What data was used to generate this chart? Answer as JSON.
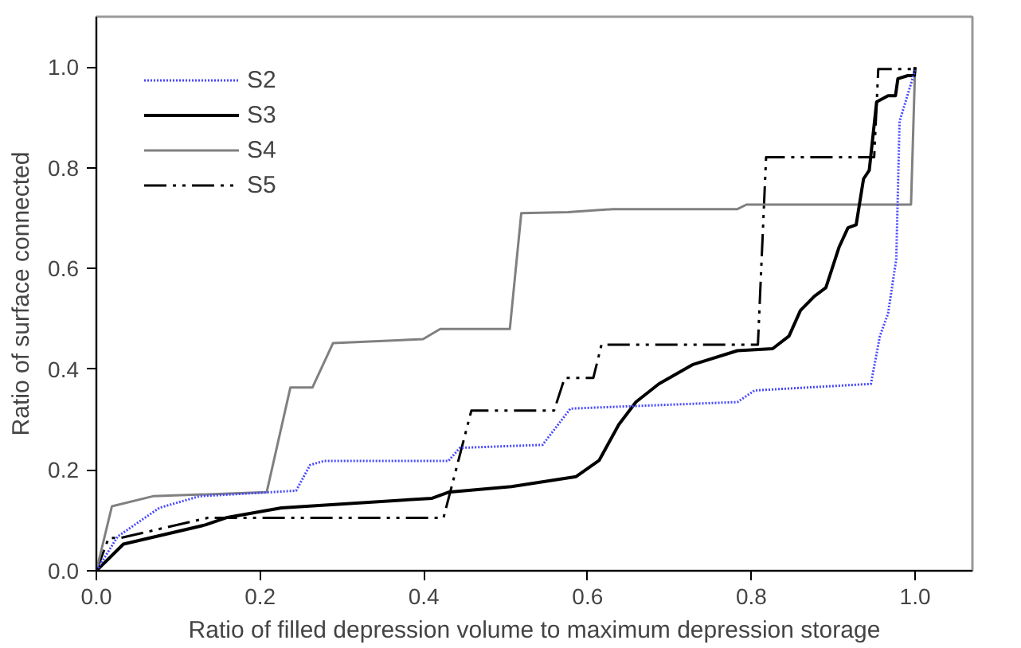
{
  "chart_data": {
    "type": "line",
    "xlabel": "Ratio of filled depression volume to maximum depression storage",
    "ylabel": "Ratio of surface connected",
    "xlim": [
      0,
      1.07
    ],
    "ylim": [
      0,
      1.1
    ],
    "xticks": [
      {
        "value": 0,
        "label": "0.0"
      },
      {
        "value": 0.2,
        "label": "0.2"
      },
      {
        "value": 0.4,
        "label": "0.4"
      },
      {
        "value": 0.6,
        "label": "0.6"
      },
      {
        "value": 0.8,
        "label": "0.8"
      },
      {
        "value": 1.0,
        "label": "1.0"
      }
    ],
    "yticks": [
      {
        "value": 0,
        "label": "0.0"
      },
      {
        "value": 0.2,
        "label": "0.2"
      },
      {
        "value": 0.4,
        "label": "0.4"
      },
      {
        "value": 0.6,
        "label": "0.6"
      },
      {
        "value": 0.8,
        "label": "0.8"
      },
      {
        "value": 1.0,
        "label": "1.0"
      }
    ],
    "grid": false,
    "legend": "top left",
    "marker": "none",
    "series": [
      {
        "name": "S2",
        "color": "#4848ff",
        "line_style": "dotted",
        "x": [
          0,
          0.026,
          0.077,
          0.126,
          0.244,
          0.261,
          0.278,
          0.43,
          0.444,
          0.545,
          0.579,
          0.783,
          0.804,
          0.946,
          0.957,
          0.967,
          0.977,
          0.981,
          1.0
        ],
        "values": [
          0,
          0.068,
          0.125,
          0.148,
          0.159,
          0.21,
          0.218,
          0.218,
          0.244,
          0.25,
          0.322,
          0.335,
          0.358,
          0.371,
          0.466,
          0.511,
          0.619,
          0.892,
          0.994
        ]
      },
      {
        "name": "S3",
        "color": "#000000",
        "line_style": "solid",
        "x": [
          0,
          0.033,
          0.133,
          0.16,
          0.226,
          0.41,
          0.43,
          0.507,
          0.586,
          0.614,
          0.638,
          0.659,
          0.687,
          0.728,
          0.783,
          0.826,
          0.846,
          0.86,
          0.877,
          0.891,
          0.907,
          0.918,
          0.928,
          0.937,
          0.944,
          0.953,
          0.967,
          0.976,
          0.979,
          0.991,
          0.999,
          1.0
        ],
        "values": [
          0,
          0.053,
          0.091,
          0.106,
          0.125,
          0.144,
          0.156,
          0.167,
          0.187,
          0.219,
          0.29,
          0.335,
          0.371,
          0.409,
          0.437,
          0.441,
          0.466,
          0.517,
          0.545,
          0.562,
          0.642,
          0.681,
          0.687,
          0.778,
          0.795,
          0.931,
          0.943,
          0.943,
          0.977,
          0.983,
          0.983,
          1.0
        ]
      },
      {
        "name": "S4",
        "color": "#808080",
        "line_style": "solid",
        "x": [
          0,
          0.019,
          0.069,
          0.208,
          0.237,
          0.264,
          0.289,
          0.399,
          0.42,
          0.505,
          0.519,
          0.576,
          0.631,
          0.783,
          0.794,
          0.995,
          1.0
        ],
        "values": [
          0,
          0.128,
          0.148,
          0.156,
          0.364,
          0.364,
          0.452,
          0.46,
          0.48,
          0.48,
          0.71,
          0.712,
          0.718,
          0.718,
          0.727,
          0.727,
          1.0
        ]
      },
      {
        "name": "S5",
        "color": "#000000",
        "line_style": "dashdot",
        "x": [
          0,
          0.015,
          0.029,
          0.136,
          0.424,
          0.458,
          0.559,
          0.572,
          0.607,
          0.617,
          0.808,
          0.818,
          0.95,
          0.955,
          1.0
        ],
        "values": [
          0,
          0.065,
          0.065,
          0.105,
          0.105,
          0.318,
          0.318,
          0.383,
          0.383,
          0.449,
          0.449,
          0.821,
          0.821,
          0.996,
          0.996
        ]
      }
    ]
  }
}
